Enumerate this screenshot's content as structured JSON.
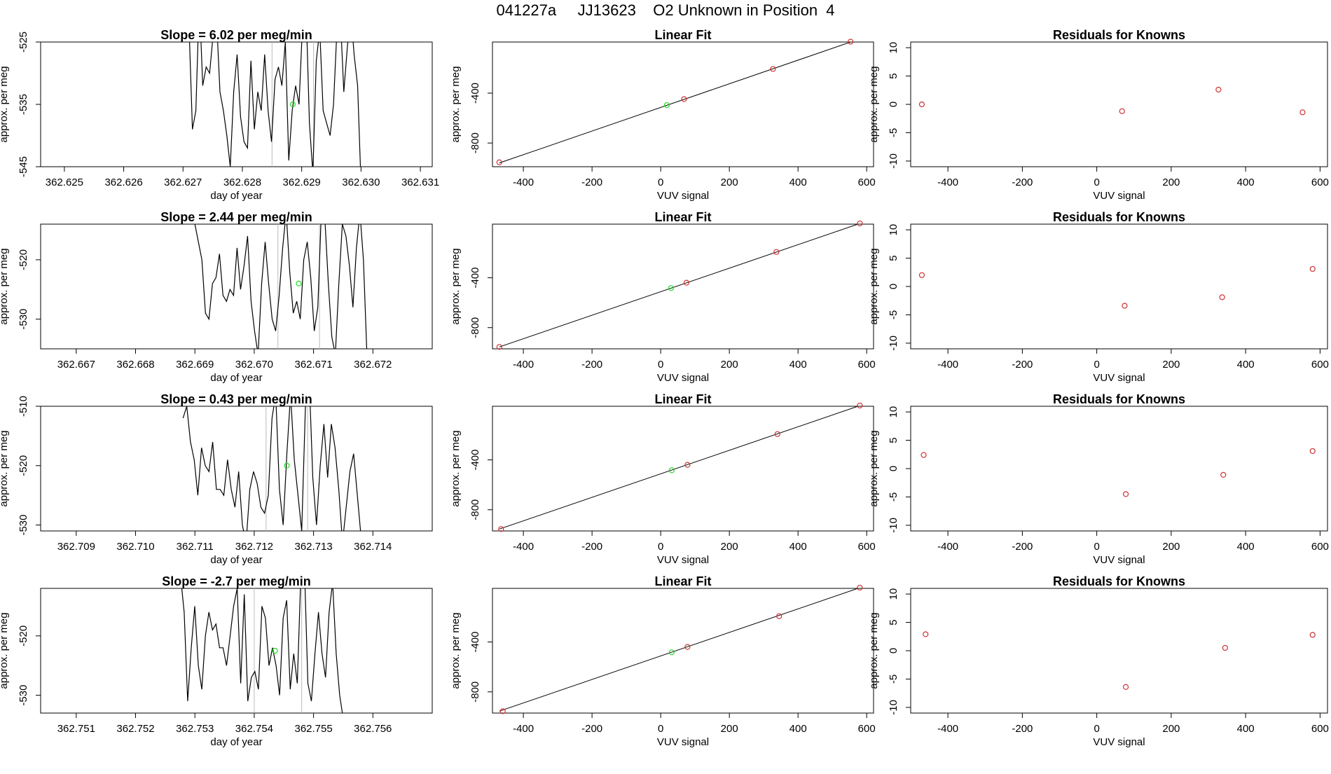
{
  "figure": {
    "title": "041227a     JJ13623    O2 Unknown in Position  4",
    "colors": {
      "line": "#000000",
      "known": "#cd3333",
      "unknown": "#22dd22",
      "gridline": "#bbbbbb"
    }
  },
  "chart_data": [
    {
      "type": "line",
      "panel": "timeseries",
      "row": 1,
      "title": "Slope =  6.02  per meg/min",
      "xlabel": "day of year",
      "ylabel": "approx. per meg",
      "xlim": [
        362.6246,
        362.6312
      ],
      "ylim": [
        -545,
        -525
      ],
      "xticks": [
        "362.625",
        "362.626",
        "362.627",
        "362.628",
        "362.629",
        "362.630",
        "362.631"
      ],
      "yticks": [
        "-525",
        "-535",
        "-545"
      ],
      "vlines": [
        362.6285,
        362.6292
      ],
      "series_y": [
        -522,
        -539,
        -536,
        -518,
        -532,
        -529,
        -530,
        -524,
        -521,
        -533,
        -536,
        -540,
        -545,
        -533,
        -527,
        -537,
        -541,
        -542,
        -528,
        -539,
        -533,
        -536,
        -527,
        -536,
        -541,
        -531,
        -529,
        -532,
        -525,
        -544,
        -536,
        -532,
        -535,
        -522,
        -519,
        -538,
        -546,
        -528,
        -523,
        -536,
        -538,
        -540,
        -535,
        -523,
        -521,
        -533,
        -526,
        -520,
        -527,
        -532,
        -548
      ],
      "series_x_start": 362.6271,
      "series_x_end": 362.63,
      "unknown_point": {
        "x": 362.62885,
        "y": -535
      }
    },
    {
      "type": "line",
      "panel": "timeseries",
      "row": 2,
      "title": "Slope =  2.44  per meg/min",
      "xlabel": "day of year",
      "ylabel": "approx. per meg",
      "xlim": [
        362.6664,
        362.673
      ],
      "ylim": [
        -535,
        -514
      ],
      "xticks": [
        "362.667",
        "362.668",
        "362.669",
        "362.670",
        "362.671",
        "362.672"
      ],
      "yticks": [
        "-520",
        "-530"
      ],
      "vlines": [
        362.6704,
        362.6711
      ],
      "series_y": [
        -514,
        -517,
        -520,
        -529,
        -530,
        -524,
        -523,
        -519,
        -526,
        -527,
        -525,
        -526,
        -518,
        -525,
        -521,
        -516,
        -527,
        -532,
        -536,
        -524,
        -517,
        -524,
        -530,
        -532,
        -526,
        -518,
        -512,
        -522,
        -529,
        -527,
        -530,
        -520,
        -517,
        -523,
        -532,
        -528,
        -512,
        -513,
        -524,
        -533,
        -536,
        -524,
        -514,
        -516,
        -521,
        -528,
        -518,
        -512,
        -520,
        -536
      ],
      "series_x_start": 362.669,
      "series_x_end": 362.6719,
      "unknown_point": {
        "x": 362.67075,
        "y": -524
      }
    },
    {
      "type": "line",
      "panel": "timeseries",
      "row": 3,
      "title": "Slope =  0.43  per meg/min",
      "xlabel": "day of year",
      "ylabel": "approx. per meg",
      "xlim": [
        362.7084,
        362.715
      ],
      "ylim": [
        -531,
        -510
      ],
      "xticks": [
        "362.709",
        "362.710",
        "362.711",
        "362.712",
        "362.713",
        "362.714"
      ],
      "yticks": [
        "-510",
        "-520",
        "-530"
      ],
      "vlines": [
        362.7122,
        362.7129
      ],
      "series_y": [
        -512,
        -510,
        -516,
        -519,
        -525,
        -517,
        -520,
        -521,
        -516,
        -524,
        -524,
        -525,
        -519,
        -524,
        -527,
        -521,
        -530,
        -533,
        -524,
        -521,
        -523,
        -527,
        -528,
        -525,
        -512,
        -508,
        -524,
        -530,
        -518,
        -508,
        -519,
        -525,
        -531,
        -510,
        -505,
        -522,
        -530,
        -520,
        -513,
        -522,
        -513,
        -517,
        -524,
        -533,
        -527,
        -521,
        -518,
        -525,
        -532
      ],
      "series_x_start": 362.7108,
      "series_x_end": 362.7138,
      "unknown_point": {
        "x": 362.71255,
        "y": -520
      }
    },
    {
      "type": "line",
      "panel": "timeseries",
      "row": 4,
      "title": "Slope =  -2.7  per meg/min",
      "xlabel": "day of year",
      "ylabel": "approx. per meg",
      "xlim": [
        362.7504,
        362.757
      ],
      "ylim": [
        -533,
        -512
      ],
      "xticks": [
        "362.751",
        "362.752",
        "362.753",
        "362.754",
        "362.755",
        "362.756"
      ],
      "yticks": [
        "-520",
        "-530"
      ],
      "vlines": [
        362.754,
        362.7548
      ],
      "series_y": [
        -512,
        -510,
        -516,
        -531,
        -522,
        -515,
        -525,
        -529,
        -520,
        -516,
        -519,
        -518,
        -522,
        -522,
        -525,
        -520,
        -515,
        -512,
        -528,
        -513,
        -531,
        -527,
        -526,
        -529,
        -515,
        -517,
        -525,
        -522,
        -525,
        -530,
        -517,
        -514,
        -529,
        -523,
        -528,
        -510,
        -508,
        -528,
        -531,
        -523,
        -516,
        -523,
        -527,
        -516,
        -511,
        -523,
        -530,
        -534
      ],
      "series_x_start": 362.7527,
      "series_x_end": 362.7555,
      "unknown_point": {
        "x": 362.75435,
        "y": -522.5
      }
    },
    {
      "type": "scatter",
      "panel": "linear_fit",
      "row": 1,
      "title": "Linear Fit",
      "xlabel": "VUV signal",
      "ylabel": "approx. per meg",
      "xlim": [
        -490,
        620
      ],
      "ylim": [
        -990,
        10
      ],
      "xticks": [
        -400,
        -200,
        0,
        200,
        400,
        600
      ],
      "yticks": [
        -400,
        -800
      ],
      "fit_line": {
        "x": [
          -470,
          585
        ],
        "y": [
          -960,
          40
        ]
      },
      "knowns": [
        {
          "x": -470,
          "y": -955
        },
        {
          "x": 68,
          "y": -448
        },
        {
          "x": 327,
          "y": -206
        },
        {
          "x": 553,
          "y": 13
        }
      ],
      "unknown": {
        "x": 18,
        "y": -496
      }
    },
    {
      "type": "scatter",
      "panel": "linear_fit",
      "row": 2,
      "title": "Linear Fit",
      "xlabel": "VUV signal",
      "ylabel": "approx. per meg",
      "xlim": [
        -490,
        620
      ],
      "ylim": [
        -970,
        30
      ],
      "xticks": [
        -400,
        -200,
        0,
        200,
        400,
        600
      ],
      "yticks": [
        -400,
        -800
      ],
      "fit_line": {
        "x": [
          -470,
          585
        ],
        "y": [
          -955,
          40
        ]
      },
      "knowns": [
        {
          "x": -470,
          "y": -955
        },
        {
          "x": 75,
          "y": -440
        },
        {
          "x": 337,
          "y": -193
        },
        {
          "x": 580,
          "y": 36
        }
      ],
      "unknown": {
        "x": 30,
        "y": -483
      }
    },
    {
      "type": "scatter",
      "panel": "linear_fit",
      "row": 3,
      "title": "Linear Fit",
      "xlabel": "VUV signal",
      "ylabel": "approx. per meg",
      "xlim": [
        -490,
        620
      ],
      "ylim": [
        -970,
        30
      ],
      "xticks": [
        -400,
        -200,
        0,
        200,
        400,
        600
      ],
      "yticks": [
        -400,
        -800
      ],
      "fit_line": {
        "x": [
          -470,
          585
        ],
        "y": [
          -955,
          40
        ]
      },
      "knowns": [
        {
          "x": -465,
          "y": -955
        },
        {
          "x": 78,
          "y": -440
        },
        {
          "x": 340,
          "y": -193
        },
        {
          "x": 580,
          "y": 36
        }
      ],
      "unknown": {
        "x": 32,
        "y": -483
      }
    },
    {
      "type": "scatter",
      "panel": "linear_fit",
      "row": 4,
      "title": "Linear Fit",
      "xlabel": "VUV signal",
      "ylabel": "approx. per meg",
      "xlim": [
        -490,
        620
      ],
      "ylim": [
        -970,
        30
      ],
      "xticks": [
        -400,
        -200,
        0,
        200,
        400,
        600
      ],
      "yticks": [
        -400,
        -800
      ],
      "fit_line": {
        "x": [
          -470,
          585
        ],
        "y": [
          -955,
          40
        ]
      },
      "knowns": [
        {
          "x": -460,
          "y": -955
        },
        {
          "x": 78,
          "y": -440
        },
        {
          "x": 345,
          "y": -193
        },
        {
          "x": 580,
          "y": 36
        }
      ],
      "unknown": {
        "x": 32,
        "y": -483
      }
    },
    {
      "type": "scatter",
      "panel": "residuals",
      "row": 1,
      "title": "Residuals for Knowns",
      "xlabel": "VUV signal",
      "ylabel": "approx. per meg",
      "xlim": [
        -500,
        620
      ],
      "ylim": [
        -11,
        11
      ],
      "xticks": [
        -400,
        -200,
        0,
        200,
        400,
        600
      ],
      "yticks": [
        10,
        5,
        0,
        -5,
        -10
      ],
      "points": [
        {
          "x": -470,
          "y": 0
        },
        {
          "x": 68,
          "y": -1.2
        },
        {
          "x": 327,
          "y": 2.6
        },
        {
          "x": 553,
          "y": -1.4
        }
      ]
    },
    {
      "type": "scatter",
      "panel": "residuals",
      "row": 2,
      "title": "Residuals for Knowns",
      "xlabel": "VUV signal",
      "ylabel": "approx. per meg",
      "xlim": [
        -500,
        620
      ],
      "ylim": [
        -11,
        11
      ],
      "xticks": [
        -400,
        -200,
        0,
        200,
        400,
        600
      ],
      "yticks": [
        10,
        5,
        0,
        -5,
        -10
      ],
      "points": [
        {
          "x": -470,
          "y": 2
        },
        {
          "x": 75,
          "y": -3.4
        },
        {
          "x": 337,
          "y": -1.9
        },
        {
          "x": 580,
          "y": 3.1
        }
      ]
    },
    {
      "type": "scatter",
      "panel": "residuals",
      "row": 3,
      "title": "Residuals for Knowns",
      "xlabel": "VUV signal",
      "ylabel": "approx. per meg",
      "xlim": [
        -500,
        620
      ],
      "ylim": [
        -11,
        11
      ],
      "xticks": [
        -400,
        -200,
        0,
        200,
        400,
        600
      ],
      "yticks": [
        10,
        5,
        0,
        -5,
        -10
      ],
      "points": [
        {
          "x": -465,
          "y": 2.4
        },
        {
          "x": 78,
          "y": -4.5
        },
        {
          "x": 340,
          "y": -1.1
        },
        {
          "x": 580,
          "y": 3.1
        }
      ]
    },
    {
      "type": "scatter",
      "panel": "residuals",
      "row": 4,
      "title": "Residuals for Knowns",
      "xlabel": "VUV signal",
      "ylabel": "approx. per meg",
      "xlim": [
        -500,
        620
      ],
      "ylim": [
        -11,
        11
      ],
      "xticks": [
        -400,
        -200,
        0,
        200,
        400,
        600
      ],
      "yticks": [
        10,
        5,
        0,
        -5,
        -10
      ],
      "points": [
        {
          "x": -460,
          "y": 2.9
        },
        {
          "x": 78,
          "y": -6.4
        },
        {
          "x": 345,
          "y": 0.5
        },
        {
          "x": 580,
          "y": 2.8
        }
      ]
    }
  ]
}
